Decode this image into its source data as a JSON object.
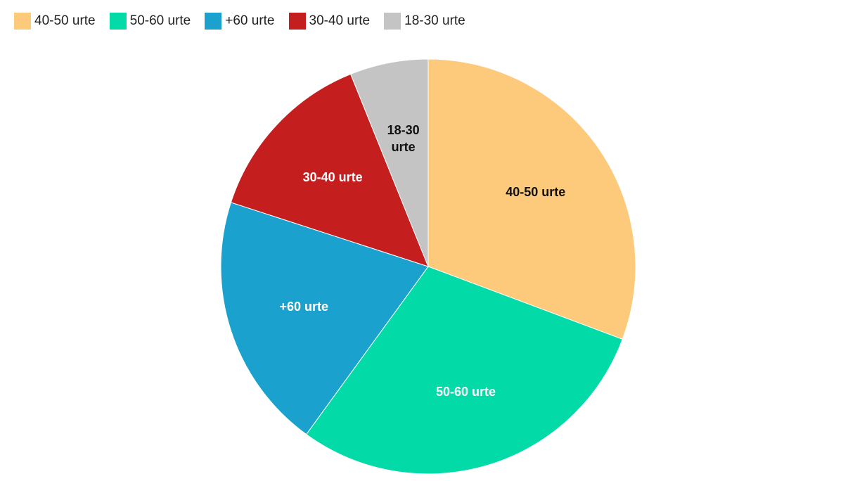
{
  "chart_data": {
    "type": "pie",
    "categories": [
      "40-50 urte",
      "50-60 urte",
      "+60 urte",
      "30-40 urte",
      "18-30 urte"
    ],
    "values": [
      30.7,
      29.3,
      20.0,
      13.9,
      6.1
    ],
    "colors": [
      "#fdca7b",
      "#02daa7",
      "#1aa1cd",
      "#c41e1e",
      "#c4c4c4"
    ]
  }
}
